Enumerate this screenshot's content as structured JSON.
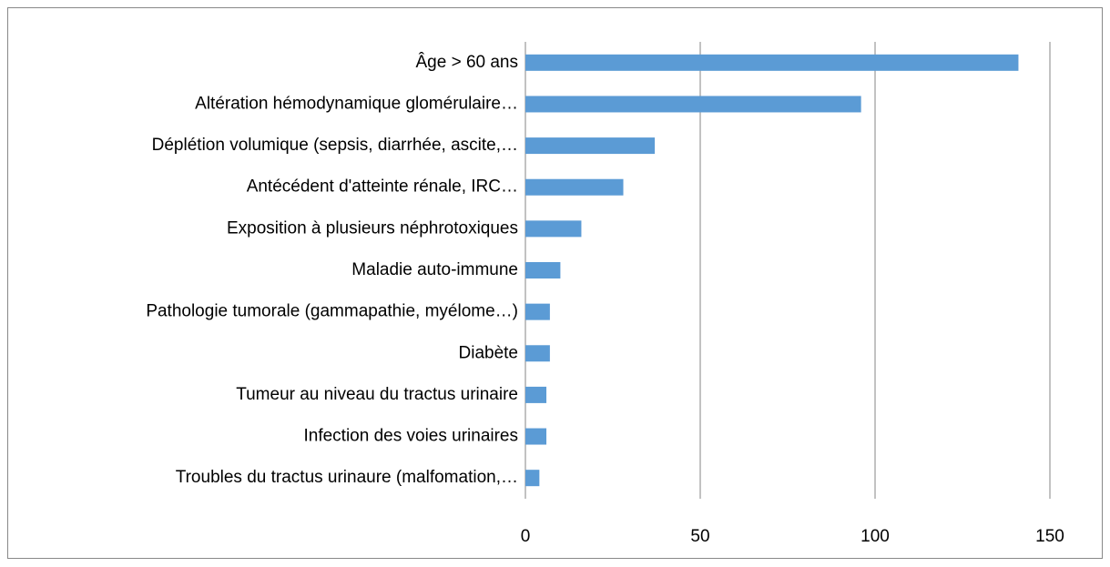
{
  "chart_data": {
    "type": "bar",
    "orientation": "horizontal",
    "categories": [
      "Âge > 60 ans",
      "Altération hémodynamique glomérulaire…",
      "Déplétion volumique (sepsis, diarrhée, ascite,…",
      "Antécédent d'atteinte rénale, IRC…",
      "Exposition à plusieurs néphrotoxiques",
      "Maladie auto-immune",
      "Pathologie tumorale (gammapathie, myélome…)",
      "Diabète",
      "Tumeur au niveau du tractus urinaire",
      "Infection des voies urinaires",
      "Troubles du tractus urinaure (malfomation,…"
    ],
    "values": [
      141,
      96,
      37,
      28,
      16,
      10,
      7,
      7,
      6,
      6,
      4
    ],
    "color": "#5b9bd5",
    "xlim": [
      0,
      150
    ],
    "xticks": [
      0,
      50,
      100,
      150
    ],
    "grid": true
  }
}
